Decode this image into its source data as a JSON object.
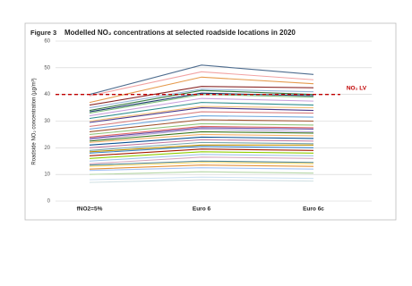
{
  "chart_data": {
    "type": "line",
    "figure_label": "Figure 3",
    "title": "Modelled NO₂ concentrations at selected roadside locations in 2020",
    "y_label": "Roadside NO₂ concentration (µg/m³)",
    "categories": [
      "fNO2=5%",
      "Euro 6",
      "Euro 6c"
    ],
    "ylim": [
      0,
      60
    ],
    "yticks": [
      0,
      10,
      20,
      30,
      40,
      50,
      60
    ],
    "grid": true,
    "limit_value": 40,
    "limit_label": "NO₂ LV",
    "limit_color": "#c00000",
    "series": [
      {
        "color": "#4f6d8f",
        "values": [
          40,
          51,
          47.5
        ]
      },
      {
        "color": "#f2a3a3",
        "values": [
          39.5,
          48.5,
          45.5
        ]
      },
      {
        "color": "#e59a4c",
        "values": [
          37,
          46.5,
          44
        ]
      },
      {
        "color": "#8b2a2a",
        "values": [
          36,
          43,
          42.5
        ]
      },
      {
        "color": "#9ab7d9",
        "values": [
          35,
          42,
          41
        ]
      },
      {
        "color": "#3a7d44",
        "values": [
          34,
          41.5,
          40
        ]
      },
      {
        "color": "#1f3b70",
        "values": [
          33.5,
          40.5,
          39.5
        ]
      },
      {
        "color": "#7fbf7f",
        "values": [
          33,
          40,
          39
        ]
      },
      {
        "color": "#c9a0dc",
        "values": [
          32,
          38.5,
          37.5
        ]
      },
      {
        "color": "#2f8f8f",
        "values": [
          31,
          37,
          36
        ]
      },
      {
        "color": "#f4c27a",
        "values": [
          30,
          35.5,
          35
        ]
      },
      {
        "color": "#4b3a8c",
        "values": [
          29.5,
          35,
          34
        ]
      },
      {
        "color": "#d98080",
        "values": [
          28,
          33.5,
          33
        ]
      },
      {
        "color": "#6fa8dc",
        "values": [
          27,
          32,
          31.5
        ]
      },
      {
        "color": "#a0522d",
        "values": [
          26,
          30.5,
          30
        ]
      },
      {
        "color": "#93c47d",
        "values": [
          25,
          29,
          28.5
        ]
      },
      {
        "color": "#e06666",
        "values": [
          24,
          28,
          27.5
        ]
      },
      {
        "color": "#674ea7",
        "values": [
          23.5,
          27.5,
          27
        ]
      },
      {
        "color": "#b4a7d6",
        "values": [
          23,
          27,
          26
        ]
      },
      {
        "color": "#38761d",
        "values": [
          22.5,
          26,
          25.5
        ]
      },
      {
        "color": "#f6b26b",
        "values": [
          22,
          25,
          24.5
        ]
      },
      {
        "color": "#0b5394",
        "values": [
          21,
          24,
          23.5
        ]
      },
      {
        "color": "#c27ba0",
        "values": [
          20,
          23,
          22.5
        ]
      },
      {
        "color": "#76a5af",
        "values": [
          19,
          22,
          21.5
        ]
      },
      {
        "color": "#bf9000",
        "values": [
          18.5,
          21,
          21
        ]
      },
      {
        "color": "#3d85c6",
        "values": [
          18,
          20.5,
          20
        ]
      },
      {
        "color": "#a61c00",
        "values": [
          17,
          19.5,
          19
        ]
      },
      {
        "color": "#8fce00",
        "values": [
          16,
          18.5,
          18
        ]
      },
      {
        "color": "#9fc5e8",
        "values": [
          15,
          17.5,
          17
        ]
      },
      {
        "color": "#d5a6bd",
        "values": [
          14,
          16.5,
          16
        ]
      },
      {
        "color": "#45818e",
        "values": [
          13.5,
          15,
          14.5
        ]
      },
      {
        "color": "#ffd966",
        "values": [
          13,
          14.5,
          14
        ]
      },
      {
        "color": "#e69138",
        "values": [
          12,
          13.5,
          13
        ]
      },
      {
        "color": "#a4c2f4",
        "values": [
          11.5,
          12.5,
          12
        ]
      },
      {
        "color": "#b6d7a8",
        "values": [
          10,
          11,
          10.5
        ]
      },
      {
        "color": "#cfe2f3",
        "values": [
          8,
          9,
          8.5
        ]
      },
      {
        "color": "#d0e0e3",
        "values": [
          7,
          8,
          7.5
        ]
      }
    ]
  }
}
